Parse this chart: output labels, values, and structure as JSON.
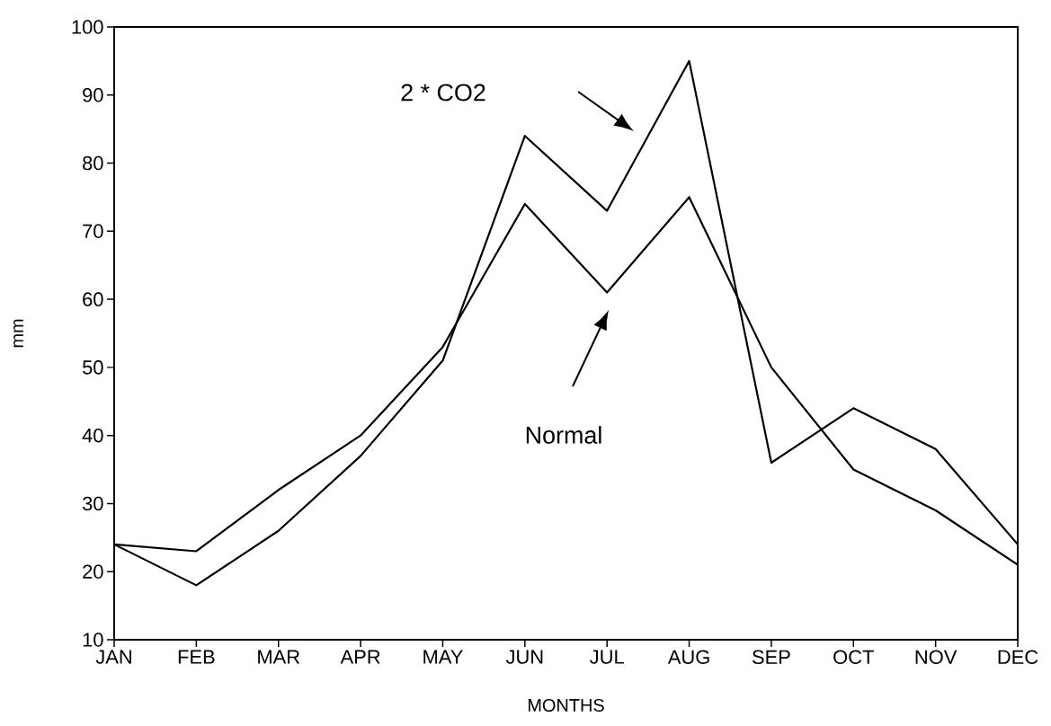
{
  "chart_data": {
    "type": "line",
    "xlabel": "MONTHS",
    "ylabel": "mm",
    "categories": [
      "JAN",
      "FEB",
      "MAR",
      "APR",
      "MAY",
      "JUN",
      "JUL",
      "AUG",
      "SEP",
      "OCT",
      "NOV",
      "DEC"
    ],
    "series": [
      {
        "color": "#000000",
        "values": [
          24,
          18,
          26,
          37,
          51,
          84,
          73,
          95,
          36,
          44,
          38,
          24
        ]
      },
      {
        "color": "#000000",
        "values": [
          24,
          23,
          32,
          40,
          53,
          74,
          61,
          75,
          50,
          35,
          29,
          21
        ]
      }
    ],
    "annotations": [
      "2 * CO2",
      "Normal"
    ],
    "ylim": [
      10,
      100
    ],
    "yticks": [
      10,
      20,
      30,
      40,
      50,
      60,
      70,
      80,
      90,
      100
    ],
    "grid": false,
    "marker": "none",
    "line_style": "solid"
  }
}
